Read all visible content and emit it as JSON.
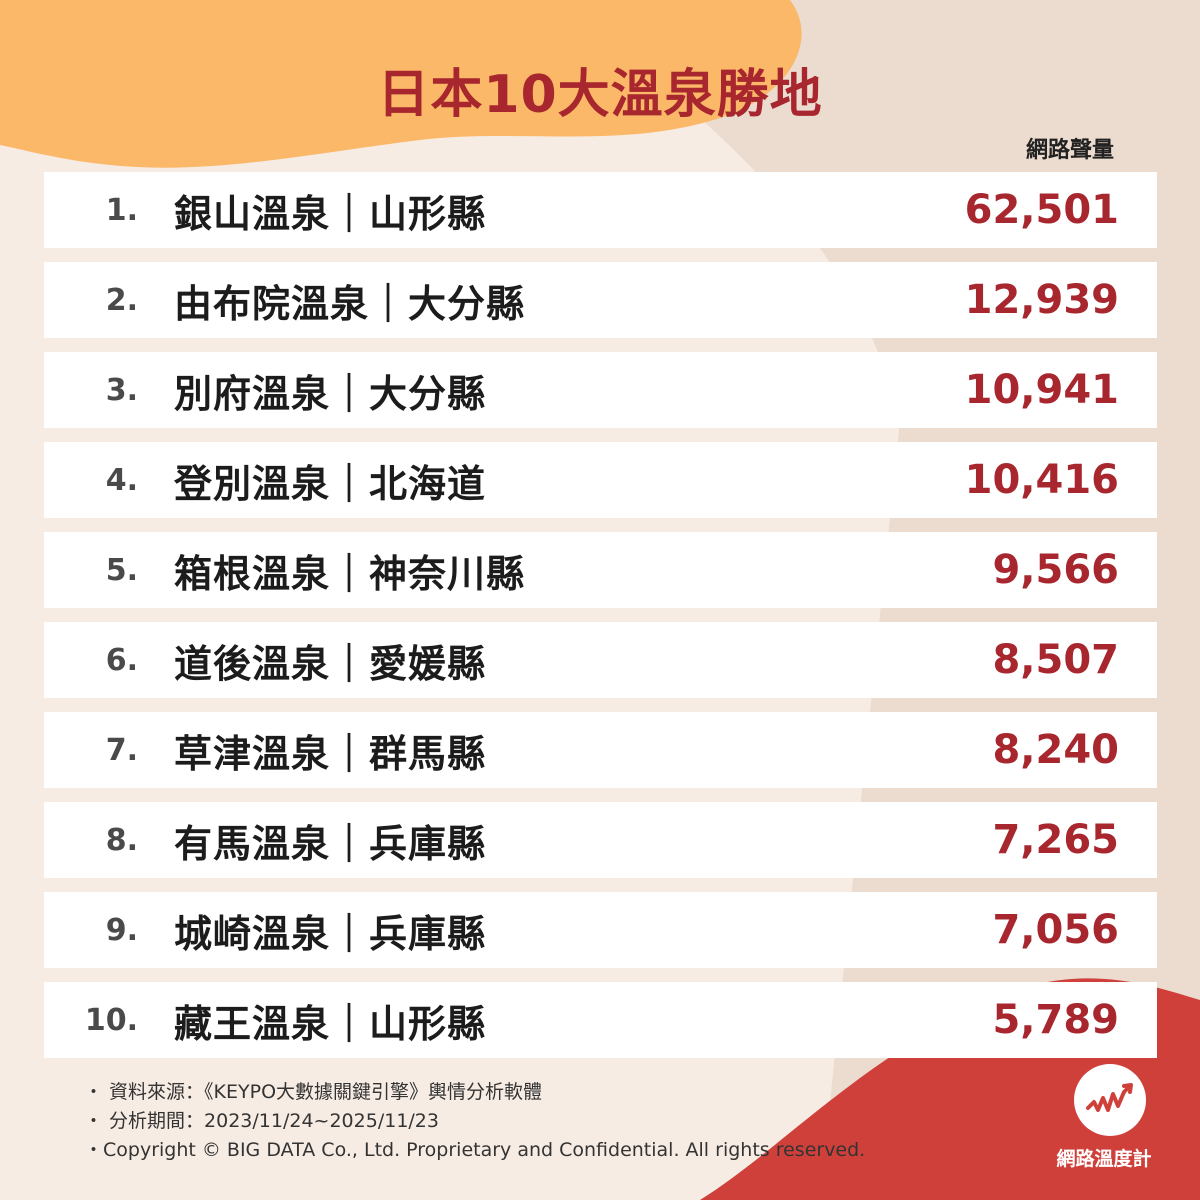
{
  "title": "日本10大溫泉勝地",
  "column_header": "網路聲量",
  "rankings": [
    {
      "rank": "1.",
      "name": "銀山溫泉｜山形縣",
      "value": "62,501"
    },
    {
      "rank": "2.",
      "name": "由布院溫泉｜大分縣",
      "value": "12,939"
    },
    {
      "rank": "3.",
      "name": "別府溫泉｜大分縣",
      "value": "10,941"
    },
    {
      "rank": "4.",
      "name": "登別溫泉｜北海道",
      "value": "10,416"
    },
    {
      "rank": "5.",
      "name": "箱根溫泉｜神奈川縣",
      "value": "9,566"
    },
    {
      "rank": "6.",
      "name": "道後溫泉｜愛媛縣",
      "value": "8,507"
    },
    {
      "rank": "7.",
      "name": "草津溫泉｜群馬縣",
      "value": "8,240"
    },
    {
      "rank": "8.",
      "name": "有馬溫泉｜兵庫縣",
      "value": "7,265"
    },
    {
      "rank": "9.",
      "name": "城崎溫泉｜兵庫縣",
      "value": "7,056"
    },
    {
      "rank": "10.",
      "name": "藏王溫泉｜山形縣",
      "value": "5,789"
    }
  ],
  "footer": {
    "source": "・ 資料來源：《KEYPO大數據關鍵引擎》輿情分析軟體",
    "period": "・ 分析期間：2023/11/24~2025/11/23",
    "copyright": "・Copyright © BIG DATA Co., Ltd. Proprietary and Confidential. All rights reserved."
  },
  "logo": {
    "text": "網路溫度計",
    "icon": "pulse-wave-icon"
  },
  "colors": {
    "accent": "#a8262d",
    "orange": "#fbb868",
    "beige": "#ecdcd0",
    "red_band": "#d0403b",
    "background": "#f7ece4"
  }
}
